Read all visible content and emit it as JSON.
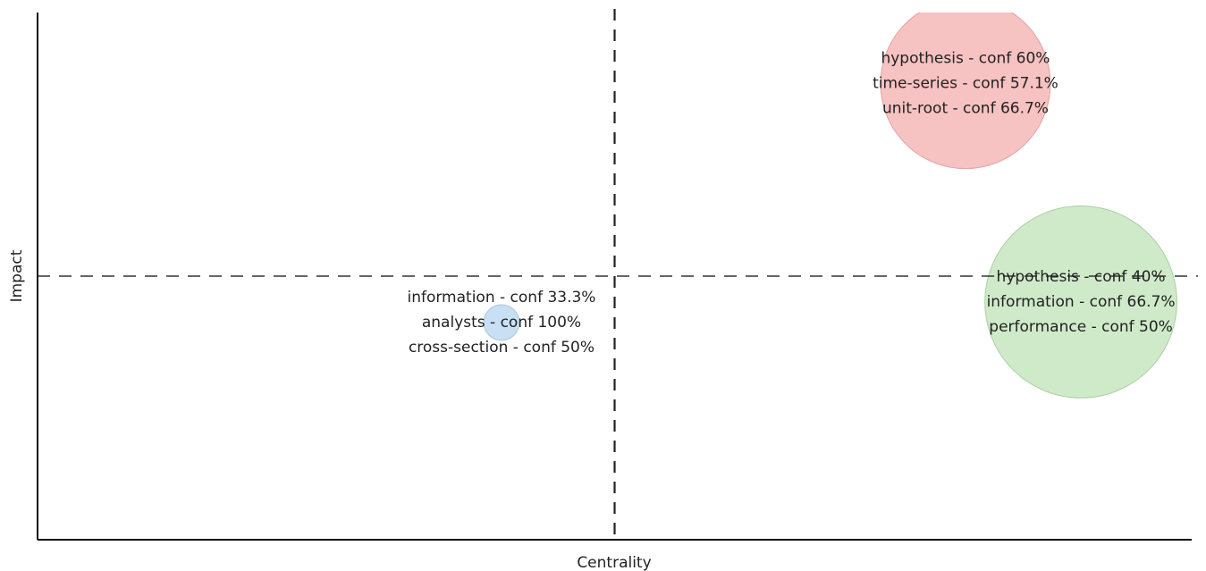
{
  "chart_data": {
    "type": "scatter",
    "title": "",
    "xlabel": "Centrality",
    "ylabel": "Impact",
    "xlim": [
      0,
      1
    ],
    "ylim": [
      0,
      1
    ],
    "grid": false,
    "axes_ticks": false,
    "reference_lines": {
      "x": 0.5,
      "y": 0.5
    },
    "clusters": [
      {
        "x": 0.804,
        "y": 0.865,
        "size": 1.0,
        "color": "#f7c2c2",
        "edge": "#e3a3a3",
        "labels": [
          "hypothesis - conf 60%",
          "time-series - conf 57.1%",
          "unit-root - conf 66.7%"
        ]
      },
      {
        "x": 0.904,
        "y": 0.451,
        "size": 1.13,
        "color": "#cfeac9",
        "edge": "#a9cfa1",
        "labels": [
          "hypothesis - conf 40%",
          "information - conf 66.7%",
          "performance - conf 50%"
        ]
      },
      {
        "x": 0.402,
        "y": 0.412,
        "size": 0.21,
        "color": "#c9dff3",
        "edge": "#a7c6e2",
        "labels": [
          "information - conf 33.3%",
          "analysts - conf 100%",
          "cross-section - conf 50%"
        ]
      }
    ]
  }
}
